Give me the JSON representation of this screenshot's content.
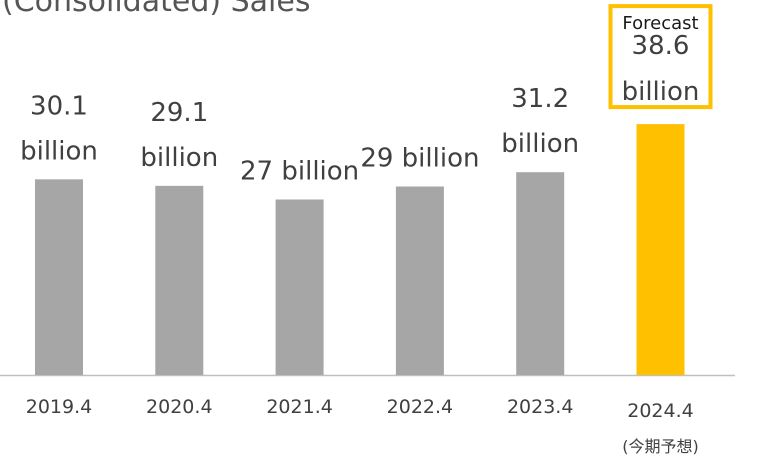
{
  "title": "(Consolidated) Sales",
  "colors": {
    "actual": "#a6a6a6",
    "forecast": "#ffc000",
    "forecast_box": "#ffc000",
    "axis": "#bfbfbf"
  },
  "chart_data": {
    "type": "bar",
    "title": "(Consolidated) Sales",
    "xlabel": "",
    "ylabel": "",
    "ylim": [
      0,
      40
    ],
    "grid": false,
    "categories": [
      "2019.4",
      "2020.4",
      "2021.4",
      "2022.4",
      "2023.4",
      "2024.4"
    ],
    "category_sublabels": [
      "",
      "",
      "",
      "",
      "",
      "(今期予想)"
    ],
    "values": [
      30.1,
      29.1,
      27,
      29,
      31.2,
      38.6
    ],
    "value_labels": [
      [
        "30.1",
        "billion"
      ],
      [
        "29.1",
        "billion"
      ],
      [
        "27 billion"
      ],
      [
        "29 billion"
      ],
      [
        "31.2",
        "billion"
      ],
      [
        "38.6",
        "billion"
      ]
    ],
    "forecast_index": 5,
    "forecast_tag": "Forecast"
  }
}
